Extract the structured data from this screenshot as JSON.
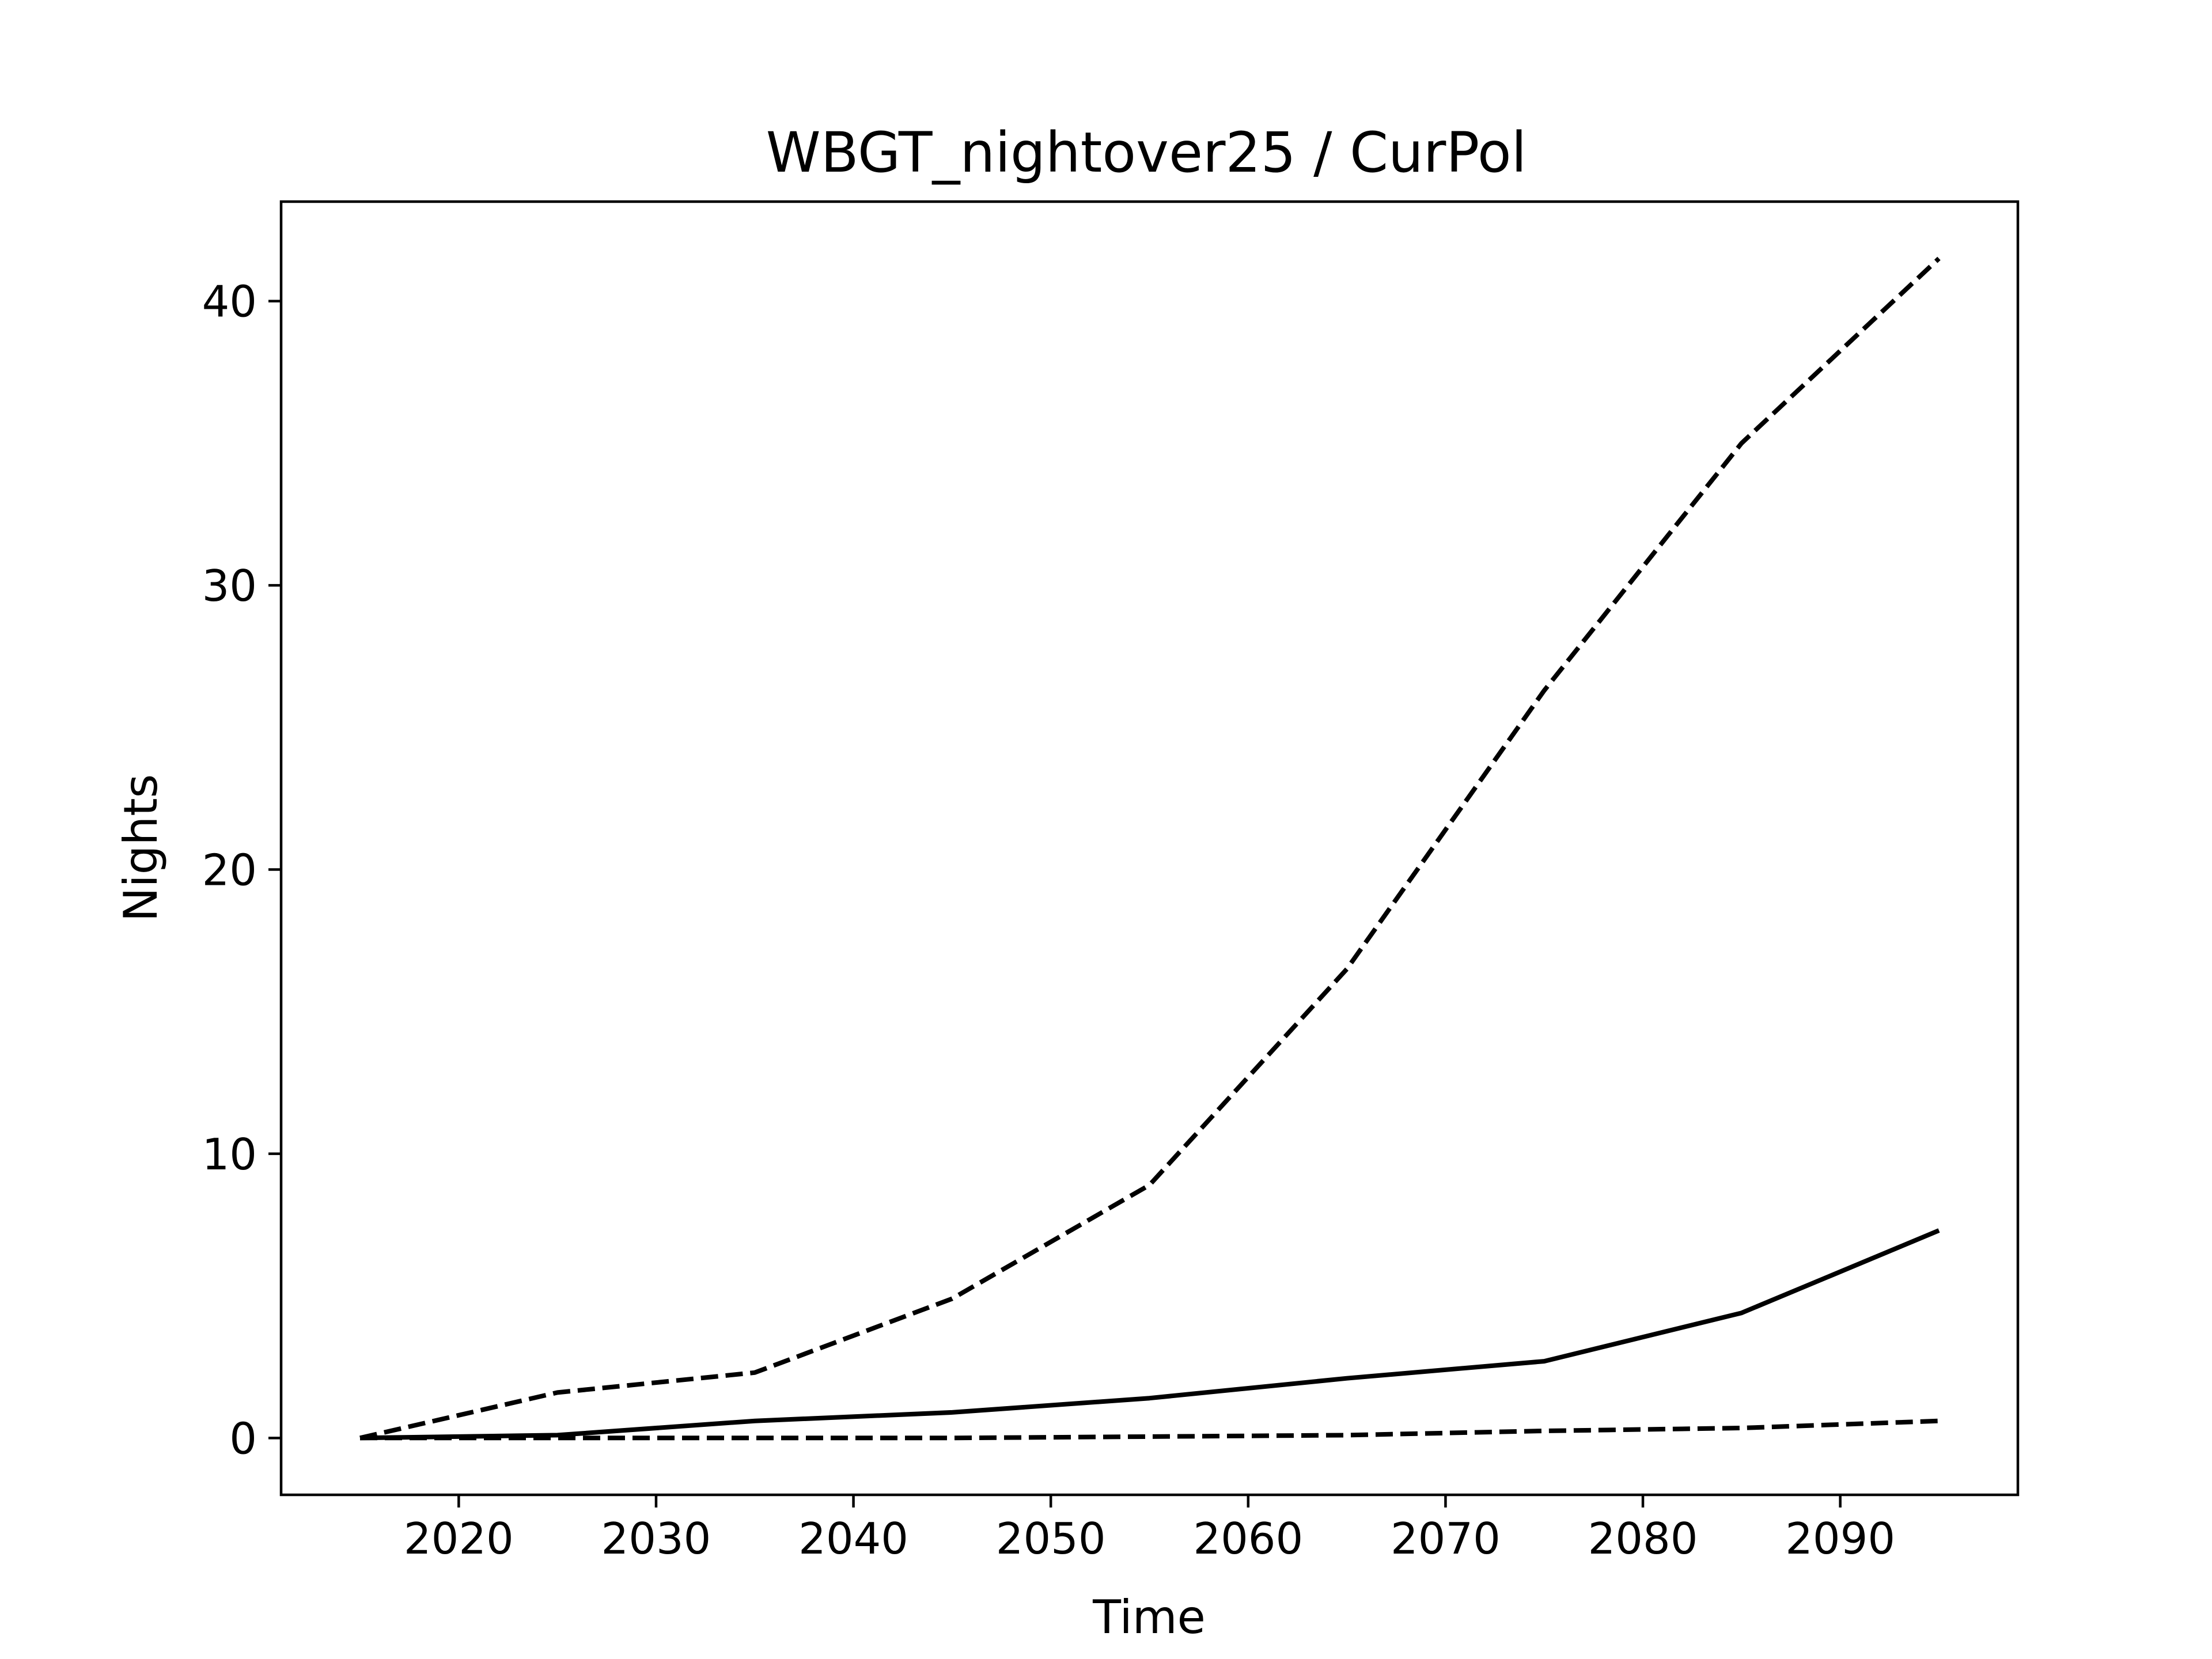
{
  "chart_data": {
    "type": "line",
    "title": "WBGT_nightover25 / CurPol",
    "xlabel": "Time",
    "ylabel": "Nights",
    "xlim": [
      2011,
      2099
    ],
    "ylim": [
      -2,
      43.5
    ],
    "xticks": [
      2020,
      2030,
      2040,
      2050,
      2060,
      2070,
      2080,
      2090
    ],
    "yticks": [
      0,
      10,
      20,
      30,
      40
    ],
    "grid": false,
    "legend": "none",
    "x": [
      2015,
      2025,
      2035,
      2045,
      2055,
      2065,
      2075,
      2085,
      2095
    ],
    "series": [
      {
        "style": "dashed",
        "color": "#000000",
        "values": [
          0.0,
          1.6,
          2.3,
          4.9,
          8.9,
          16.5,
          26.3,
          35.0,
          41.5
        ]
      },
      {
        "style": "solid",
        "color": "#000000",
        "values": [
          0.0,
          0.1,
          0.6,
          0.9,
          1.4,
          2.1,
          2.7,
          4.4,
          7.3
        ]
      },
      {
        "style": "dashed",
        "color": "#000000",
        "values": [
          0.0,
          0.0,
          0.0,
          0.0,
          0.05,
          0.1,
          0.25,
          0.35,
          0.6
        ]
      }
    ]
  }
}
